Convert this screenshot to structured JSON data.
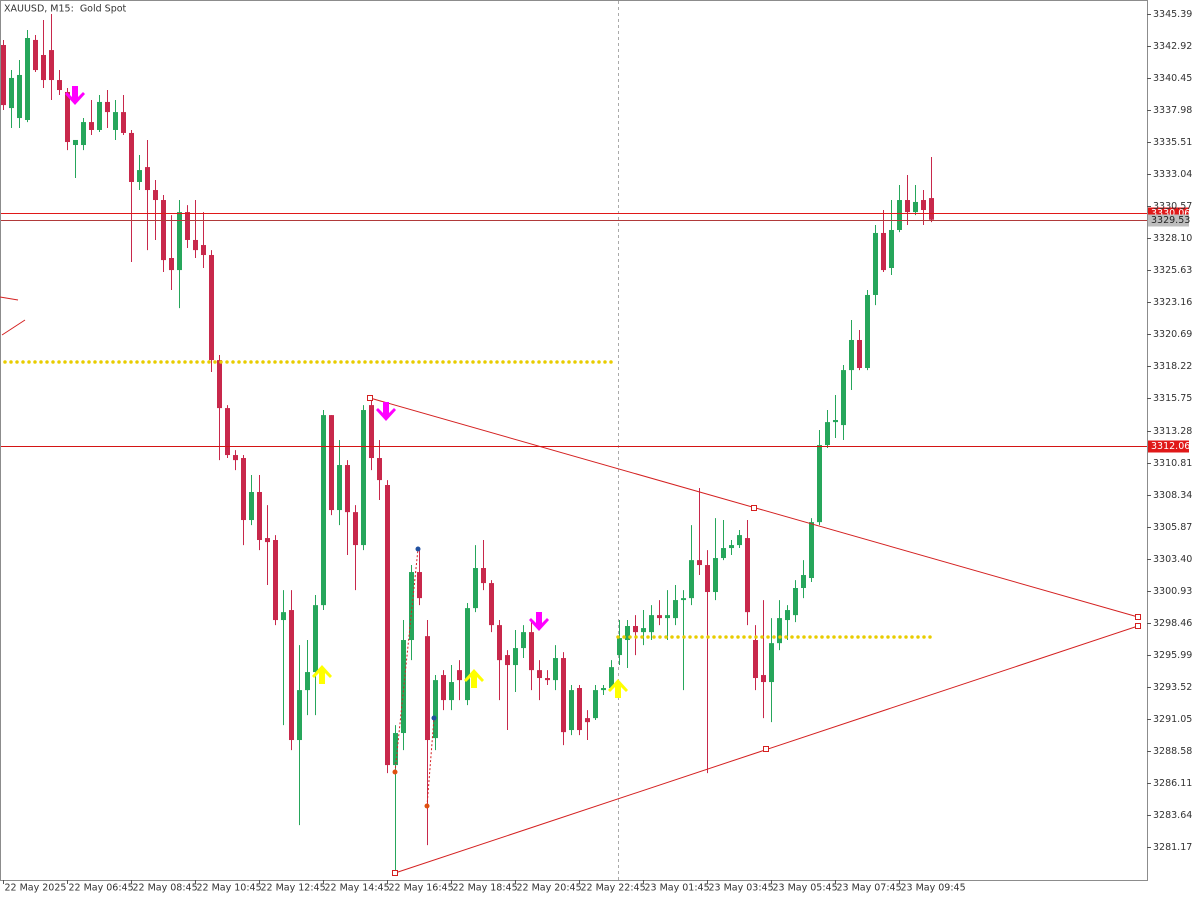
{
  "chart_data": {
    "type": "candlestick",
    "title": "XAUUSD, M15:  Gold Spot",
    "categories": [
      "22 May 2025",
      null,
      null,
      null,
      null,
      null,
      null,
      null,
      "22 May 06:45",
      null,
      null,
      null,
      null,
      null,
      null,
      null,
      "22 May 08:45",
      null,
      null,
      null,
      null,
      null,
      null,
      null,
      "22 May 10:45",
      null,
      null,
      null,
      null,
      null,
      null,
      null,
      "22 May 12:45",
      null,
      null,
      null,
      null,
      null,
      null,
      null,
      "22 May 14:45",
      null,
      null,
      null,
      null,
      null,
      null,
      null,
      "22 May 16:45",
      null,
      null,
      null,
      null,
      null,
      null,
      null,
      "22 May 18:45",
      null,
      null,
      null,
      null,
      null,
      null,
      null,
      "22 May 20:45",
      null,
      null,
      null,
      null,
      null,
      null,
      null,
      "22 May 22:45",
      null,
      null,
      null,
      null,
      null,
      null,
      null,
      "23 May 01:45",
      null,
      null,
      null,
      null,
      null,
      null,
      null,
      "23 May 03:45",
      null,
      null,
      null,
      null,
      null,
      null,
      null,
      "23 May 05:45",
      null,
      null,
      null,
      null,
      null,
      null,
      null,
      "23 May 07:45",
      null,
      null,
      null,
      null,
      null,
      null,
      null,
      "23 May 09:45",
      null,
      null,
      null,
      null
    ],
    "open": [
      3343.0,
      3338.14,
      3337.37,
      3337.22,
      3343.39,
      3342.23,
      3342.61,
      3340.3,
      3339.38,
      3335.29,
      3335.29,
      3337.06,
      3336.45,
      3338.61,
      3336.45,
      3337.83,
      3336.22,
      3332.44,
      3333.59,
      3331.82,
      3331.05,
      3326.58,
      3325.65,
      3330.12,
      3327.97,
      3327.58,
      3326.81,
      3318.71,
      3315.01,
      3311.39,
      3311.16,
      3306.38,
      3308.54,
      3304.99,
      3304.84,
      3298.67,
      3299.44,
      3289.42,
      3293.27,
      3294.66,
      3299.82,
      3314.47,
      3307.15,
      3310.62,
      3306.99,
      3304.45,
      3315.24,
      3311.16,
      3309.08,
      3287.49,
      3289.96,
      3297.13,
      3302.37,
      3297.43,
      3289.57,
      3294.43,
      3292.5,
      3294.81,
      3292.5,
      3299.59,
      3302.68,
      3301.52,
      3298.28,
      3295.97,
      3295.2,
      3296.51,
      3297.74,
      3294.81,
      3294.2,
      3294.04,
      3295.74,
      3290.19,
      3293.43,
      3291.11,
      3291.11,
      3293.27,
      3293.43,
      3295.97,
      3297.13,
      3298.21,
      3297.74,
      3297.74,
      3299.05,
      3298.82,
      3298.82,
      3300.21,
      3300.36,
      3303.29,
      3302.91,
      3300.83,
      3303.45,
      3304.22,
      3304.45,
      3304.99,
      3297.13,
      3294.43,
      3293.89,
      3296.89,
      3298.67,
      3299.05,
      3301.14,
      3301.91,
      3306.22,
      3312.16,
      3313.93,
      3313.7,
      3317.94,
      3320.26,
      3318.1,
      3323.73,
      3328.51,
      3325.81,
      3328.74,
      3331.05,
      3330.12,
      3331.05,
      3331.2
    ],
    "high": [
      3343.39,
      3341.07,
      3341.84,
      3344.16,
      3343.77,
      3344.93,
      3345.39,
      3341.07,
      3339.69,
      3335.68,
      3337.37,
      3338.76,
      3339.15,
      3339.53,
      3338.76,
      3339.15,
      3336.45,
      3334.52,
      3335.68,
      3332.59,
      3331.44,
      3329.89,
      3331.05,
      3330.66,
      3331.05,
      3330.12,
      3327.19,
      3319.1,
      3315.24,
      3311.77,
      3311.39,
      3309.85,
      3309.85,
      3307.53,
      3305.22,
      3300.98,
      3300.98,
      3296.74,
      3297.13,
      3300.6,
      3314.86,
      3314.47,
      3312.55,
      3311.0,
      3307.53,
      3315.24,
      3315.78,
      3312.55,
      3309.46,
      3290.57,
      3298.67,
      3302.91,
      3304.22,
      3298.67,
      3294.43,
      3294.81,
      3295.2,
      3295.58,
      3299.98,
      3304.45,
      3304.84,
      3301.75,
      3298.67,
      3296.35,
      3297.9,
      3298.28,
      3298.67,
      3295.58,
      3294.81,
      3296.74,
      3296.2,
      3293.66,
      3293.66,
      3291.73,
      3293.66,
      3293.66,
      3295.58,
      3298.67,
      3298.67,
      3299.05,
      3299.44,
      3299.82,
      3300.21,
      3300.98,
      3301.37,
      3300.98,
      3305.99,
      3308.85,
      3304.06,
      3306.53,
      3306.38,
      3304.84,
      3305.61,
      3306.38,
      3298.28,
      3300.21,
      3298.82,
      3300.21,
      3299.82,
      3301.75,
      3303.29,
      3306.53,
      3313.32,
      3314.86,
      3316.02,
      3318.33,
      3321.8,
      3321.03,
      3324.11,
      3329.12,
      3330.28,
      3331.05,
      3332.21,
      3332.98,
      3332.21,
      3331.82,
      3334.37
    ],
    "low": [
      3337.99,
      3336.6,
      3336.6,
      3337.06,
      3340.92,
      3339.69,
      3338.76,
      3339.15,
      3334.9,
      3332.75,
      3334.9,
      3336.06,
      3336.29,
      3336.6,
      3335.68,
      3336.06,
      3326.27,
      3331.82,
      3327.19,
      3327.97,
      3325.5,
      3324.11,
      3322.72,
      3327.35,
      3326.58,
      3325.81,
      3317.79,
      3311.0,
      3311.16,
      3310.23,
      3304.45,
      3305.99,
      3304.06,
      3301.37,
      3298.28,
      3290.57,
      3288.64,
      3282.86,
      3291.34,
      3291.34,
      3299.44,
      3306.76,
      3305.99,
      3303.68,
      3300.98,
      3304.06,
      3310.23,
      3307.92,
      3286.87,
      3279.16,
      3288.64,
      3295.58,
      3299.82,
      3281.32,
      3288.64,
      3291.73,
      3291.73,
      3292.5,
      3292.11,
      3299.28,
      3300.98,
      3297.74,
      3292.5,
      3290.19,
      3293.12,
      3295.74,
      3293.27,
      3292.5,
      3293.66,
      3293.27,
      3289.03,
      3289.8,
      3289.8,
      3289.42,
      3290.96,
      3292.89,
      3293.27,
      3295.2,
      3294.97,
      3295.97,
      3296.74,
      3297.13,
      3298.28,
      3297.13,
      3298.28,
      3293.27,
      3299.82,
      3302.14,
      3286.87,
      3300.21,
      3303.29,
      3303.68,
      3304.22,
      3298.28,
      3293.27,
      3291.11,
      3290.8,
      3296.35,
      3297.13,
      3298.51,
      3300.36,
      3301.6,
      3305.99,
      3311.93,
      3312.7,
      3312.55,
      3316.4,
      3317.94,
      3317.94,
      3322.95,
      3325.5,
      3325.27,
      3328.58,
      3329.12,
      3329.89,
      3329.12,
      3329.35
    ],
    "close": [
      3338.37,
      3340.46,
      3340.69,
      3343.54,
      3341.07,
      3340.3,
      3340.3,
      3339.53,
      3335.52,
      3335.68,
      3337.06,
      3336.45,
      3338.61,
      3337.83,
      3337.83,
      3336.22,
      3332.44,
      3333.36,
      3331.82,
      3331.05,
      3326.42,
      3325.65,
      3330.12,
      3327.97,
      3327.19,
      3326.81,
      3318.71,
      3315.01,
      3311.39,
      3311.0,
      3306.38,
      3308.54,
      3304.84,
      3304.68,
      3298.67,
      3299.28,
      3289.42,
      3293.27,
      3294.66,
      3299.82,
      3314.47,
      3307.15,
      3310.62,
      3306.99,
      3304.45,
      3314.86,
      3311.16,
      3309.46,
      3287.49,
      3289.96,
      3297.13,
      3302.37,
      3300.36,
      3289.42,
      3294.04,
      3292.5,
      3293.89,
      3294.04,
      3299.59,
      3302.68,
      3301.52,
      3298.28,
      3295.58,
      3295.2,
      3296.51,
      3297.74,
      3294.81,
      3294.2,
      3294.04,
      3295.74,
      3290.03,
      3293.27,
      3290.19,
      3290.8,
      3293.27,
      3293.43,
      3295.04,
      3297.28,
      3298.21,
      3297.74,
      3298.05,
      3299.05,
      3298.82,
      3299.05,
      3300.21,
      3300.36,
      3303.29,
      3302.91,
      3300.83,
      3303.45,
      3304.22,
      3304.45,
      3305.22,
      3299.28,
      3294.2,
      3293.89,
      3296.89,
      3298.82,
      3299.44,
      3301.14,
      3302.14,
      3306.22,
      3312.16,
      3313.93,
      3314.09,
      3317.94,
      3320.26,
      3318.1,
      3323.73,
      3328.51,
      3325.65,
      3328.74,
      3331.05,
      3330.12,
      3330.9,
      3330.28,
      3329.53
    ],
    "up_color": "#26a65b",
    "down_color": "#c8284b",
    "ylim": [
      3278.63,
      3346.47
    ],
    "yticks": [
      3345.39,
      3342.92,
      3340.45,
      3337.98,
      3335.51,
      3333.04,
      3330.57,
      {
        "value": 3328.1,
        "label": "3328.10"
      },
      3325.63,
      3323.16,
      3320.69,
      3318.22,
      3315.75,
      3313.28,
      3310.81,
      3308.34,
      3305.87,
      {
        "value": 3303.4,
        "label": "3303.40"
      },
      3300.93,
      3298.46,
      3295.99,
      3293.52,
      3291.05,
      3288.58,
      3286.11,
      3283.64,
      3281.17
    ],
    "grid": false,
    "levels": [
      {
        "price": 3330.06,
        "color": "#e01818",
        "label_color": "#e01818"
      },
      {
        "price": 3312.06,
        "color": "#d41414",
        "label_color": "#e01818"
      },
      {
        "price": 3329.53,
        "color": "#b03a3a",
        "label_color": "#bdbdbd"
      }
    ]
  }
}
